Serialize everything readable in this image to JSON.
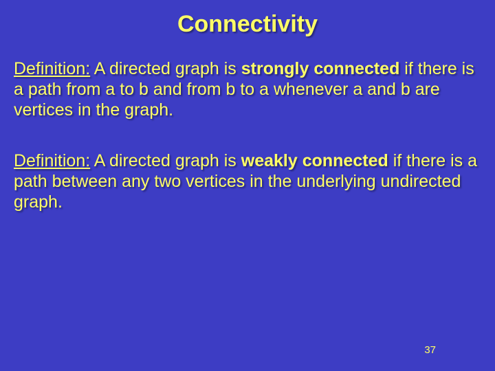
{
  "slide": {
    "title": "Connectivity",
    "background_color": "#3d3dc4",
    "text_color": "#ffff66",
    "font_family": "Comic Sans MS",
    "title_fontsize": 34,
    "body_fontsize": 25,
    "def1": {
      "label": "Definition:",
      "pre_bold": " A directed graph is ",
      "bold": "strongly connected",
      "post_bold": " if there is a path from a to b and from b to a whenever a and b are vertices in the graph."
    },
    "def2": {
      "label": "Definition:",
      "pre_bold": " A directed graph is ",
      "bold": "weakly connected",
      "post_bold": " if there is a path between any two vertices in the underlying undirected graph."
    },
    "page_number": "37"
  }
}
